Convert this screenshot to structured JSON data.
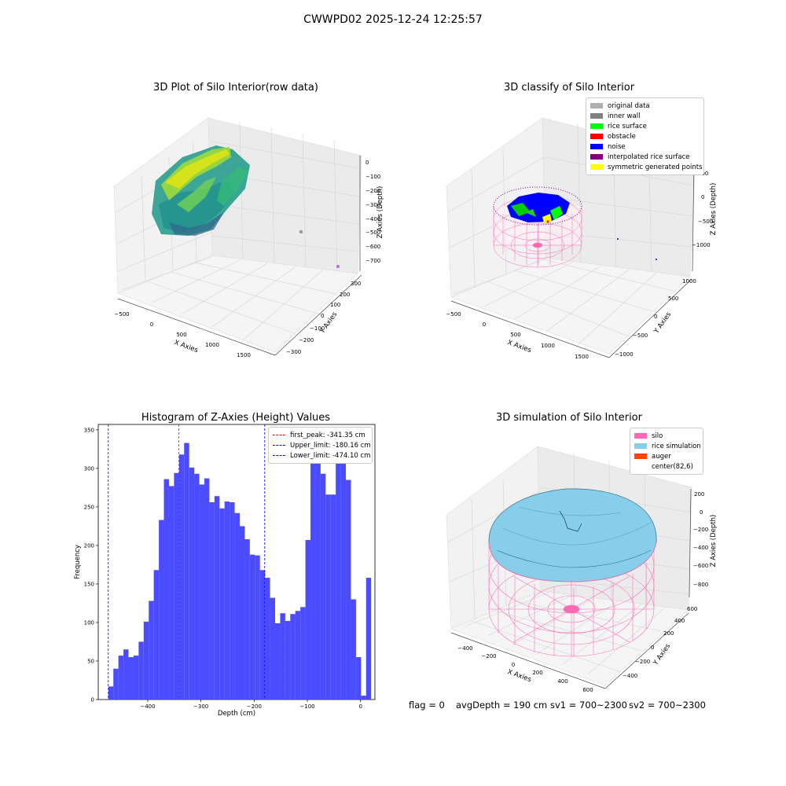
{
  "figure": {
    "suptitle": "CWWPD02 2025-12-24 12:25:57",
    "status": {
      "flag": "flag = 0",
      "avg_depth": "avgDepth = 190 cm",
      "sv1": "sv1 = 700~2300",
      "sv2": "sv2 = 700~2300"
    }
  },
  "chart_data": [
    {
      "type": "scatter",
      "title": "3D Plot of Silo Interior(row data)",
      "xlabel": "X Axies",
      "ylabel": "Y Axies",
      "zlabel": "Z Axies (Depth)",
      "x_ticks": [
        "−500",
        "0",
        "500",
        "1000",
        "1500"
      ],
      "y_ticks": [
        "−300",
        "−200",
        "−100",
        "0",
        "100",
        "200",
        "300"
      ],
      "z_ticks": [
        "0",
        "−100",
        "−200",
        "−300",
        "−400",
        "−500",
        "−600",
        "−700"
      ],
      "colormap": "viridis"
    },
    {
      "type": "scatter",
      "title": "3D classify of Silo Interior",
      "xlabel": "X Axies",
      "ylabel": "Y Axies",
      "zlabel": "Z Axies (Depth)",
      "x_ticks": [
        "−500",
        "0",
        "500",
        "1000",
        "1500"
      ],
      "y_ticks": [
        "−1000",
        "−500",
        "0",
        "500",
        "1000"
      ],
      "z_ticks": [
        "500",
        "0",
        "−500",
        "−1000"
      ],
      "legend": [
        {
          "label": "original data",
          "color": "#b0b0b0"
        },
        {
          "label": "inner wall",
          "color": "#808080"
        },
        {
          "label": "rice surface",
          "color": "#00ff00"
        },
        {
          "label": "obstacle",
          "color": "#ff0000"
        },
        {
          "label": "noise",
          "color": "#0000ff"
        },
        {
          "label": "interpolated rice surface",
          "color": "#800080"
        },
        {
          "label": "symmetric generated points",
          "color": "#ffff00"
        }
      ]
    },
    {
      "type": "bar",
      "title": "Histogram of Z-Axies (Height) Values",
      "xlabel": "Depth (cm)",
      "ylabel": "Frequency",
      "xlim": [
        -493,
        27
      ],
      "ylim": [
        0,
        357
      ],
      "x_ticks": [
        -400,
        -300,
        -200,
        -100,
        0
      ],
      "x_tick_labels": [
        "−400",
        "−300",
        "−200",
        "−100",
        "0"
      ],
      "y_ticks": [
        0,
        50,
        100,
        150,
        200,
        250,
        300,
        350
      ],
      "bin_start": -474.1,
      "bin_width": 9.5,
      "values": [
        17,
        40,
        57,
        65,
        55,
        57,
        75,
        101,
        128,
        168,
        233,
        286,
        277,
        294,
        318,
        333,
        301,
        293,
        279,
        287,
        256,
        264,
        248,
        257,
        256,
        242,
        225,
        208,
        188,
        187,
        168,
        158,
        132,
        99,
        112,
        102,
        111,
        115,
        120,
        207,
        334,
        310,
        293,
        266,
        266,
        307,
        340,
        285,
        130,
        55,
        5,
        158
      ],
      "bar_color": "#4b4bff",
      "vlines": [
        {
          "x": -341.35,
          "color": "#ff0000",
          "label": "first_peak: -341.35 cm"
        },
        {
          "x": -180.16,
          "color": "#0000ff",
          "label": "Upper_limit: -180.16 cm"
        },
        {
          "x": -474.1,
          "color": "#0000ff",
          "label": "Lower_limit: -474.10 cm"
        }
      ]
    },
    {
      "type": "surface",
      "title": "3D simulation of Silo Interior",
      "xlabel": "X Axies",
      "ylabel": "Y Axies",
      "zlabel": "Z Axies (Depth)",
      "x_ticks": [
        "−400",
        "−200",
        "0",
        "200",
        "400",
        "600"
      ],
      "y_ticks": [
        "−400",
        "−200",
        "0",
        "200",
        "400",
        "600"
      ],
      "z_ticks": [
        "200",
        "0",
        "−200",
        "−400",
        "−600",
        "−800"
      ],
      "legend": [
        {
          "label": "silo",
          "color": "#ff69b4"
        },
        {
          "label": "rice simulation",
          "color": "#87ceeb"
        },
        {
          "label": "auger",
          "color": "#ff4500"
        },
        {
          "label": "center(82,6)",
          "color": "#ffffff"
        }
      ]
    }
  ]
}
